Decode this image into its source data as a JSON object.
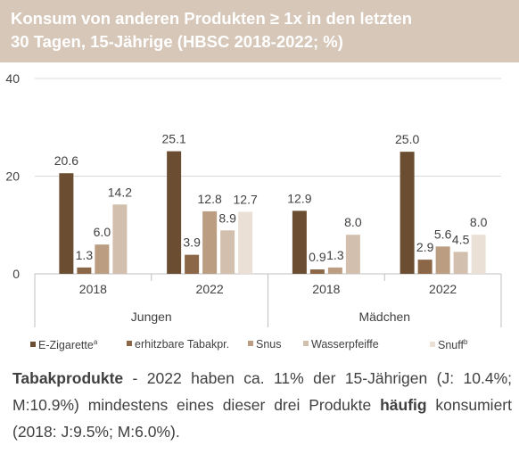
{
  "title": {
    "line1": "Konsum von anderen Produkten ≥ 1x in den letzten",
    "line2": "30 Tagen, 15-Jährige (HBSC 2018-2022; %)"
  },
  "chart_data": {
    "type": "bar",
    "ylim": [
      0,
      40
    ],
    "y_ticks": [
      "0",
      "20",
      "40"
    ],
    "grid": "horizontal",
    "legend_position": "bottom",
    "groups": [
      {
        "label": "Jungen",
        "categories": [
          "2018",
          "2022"
        ]
      },
      {
        "label": "Mädchen",
        "categories": [
          "2018",
          "2022"
        ]
      }
    ],
    "series": [
      {
        "name": "E-Zigarette",
        "sup": "a",
        "color": "#6b4e32",
        "values": [
          20.6,
          25.1,
          12.9,
          25.0
        ],
        "labels": [
          "20.6",
          "25.1",
          "12.9",
          "25.0"
        ]
      },
      {
        "name": "erhitzbare Tabakpr.",
        "sup": "",
        "color": "#8b6748",
        "values": [
          1.3,
          3.9,
          0.9,
          2.9
        ],
        "labels": [
          "1.3",
          "3.9",
          "0.9",
          "2.9"
        ]
      },
      {
        "name": "Snus",
        "sup": "",
        "color": "#bb9d82",
        "values": [
          6.0,
          12.8,
          1.3,
          5.6
        ],
        "labels": [
          "6.0",
          "12.8",
          "1.3",
          "5.6"
        ]
      },
      {
        "name": "Wasserpfeiffe",
        "sup": "",
        "color": "#d3bfad",
        "values": [
          14.2,
          8.9,
          8.0,
          4.5
        ],
        "labels": [
          "14.2",
          "8.9",
          "8.0",
          "4.5"
        ]
      },
      {
        "name": "Snuff",
        "sup": "b",
        "color": "#ebe0d6",
        "values": [
          null,
          12.7,
          null,
          8.0
        ],
        "labels": [
          "",
          "12.7",
          "",
          "8.0"
        ]
      }
    ]
  },
  "footnote": {
    "bold1": "Tabakprodukte",
    "text1": " - 2022 haben ca. 11% der 15-Jährigen (J: 10.4%; M:10.9%) mindestens eines dieser drei Produkte ",
    "bold2": "häufig",
    "text2": " konsumiert (2018: J:9.5%; M:6.0%)."
  }
}
